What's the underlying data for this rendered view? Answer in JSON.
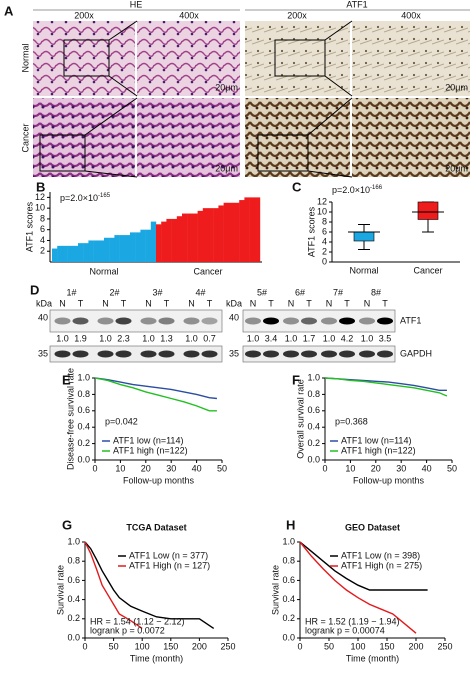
{
  "figure": {
    "panel_a": {
      "label": "A",
      "groups": [
        "HE",
        "ATF1"
      ],
      "magnifications": [
        "200x",
        "400x",
        "200x",
        "400x"
      ],
      "rows": [
        "Normal",
        "Cancer"
      ],
      "scale_bars": [
        "20μm",
        "20μm",
        "20μm",
        "20μm"
      ]
    },
    "panel_d": {
      "label": "D",
      "kda": [
        "kDa",
        "kDa"
      ],
      "left_markers": [
        "40",
        "35"
      ],
      "right_markers": [
        "40",
        "35"
      ],
      "proteins": [
        "ATF1",
        "GAPDH"
      ],
      "samples": [
        {
          "id": "1#",
          "lanes": [
            "N",
            "T"
          ],
          "ratios": [
            "1.0",
            "1.9"
          ]
        },
        {
          "id": "2#",
          "lanes": [
            "N",
            "T"
          ],
          "ratios": [
            "1.0",
            "2.3"
          ]
        },
        {
          "id": "3#",
          "lanes": [
            "N",
            "T"
          ],
          "ratios": [
            "1.0",
            "1.3"
          ]
        },
        {
          "id": "4#",
          "lanes": [
            "N",
            "T"
          ],
          "ratios": [
            "1.0",
            "0.7"
          ]
        },
        {
          "id": "5#",
          "lanes": [
            "N",
            "T"
          ],
          "ratios": [
            "1.0",
            "3.4"
          ]
        },
        {
          "id": "6#",
          "lanes": [
            "N",
            "T"
          ],
          "ratios": [
            "1.0",
            "1.7"
          ]
        },
        {
          "id": "7#",
          "lanes": [
            "N",
            "T"
          ],
          "ratios": [
            "1.0",
            "4.2"
          ]
        },
        {
          "id": "8#",
          "lanes": [
            "N",
            "T"
          ],
          "ratios": [
            "1.0",
            "3.5"
          ]
        }
      ]
    }
  },
  "chart_data": [
    {
      "type": "bar",
      "panel_label": "B",
      "ylabel": "ATF1 scores",
      "annotation": "p=2.0×10",
      "annotation_exponent": "-165",
      "ylim": [
        0,
        13
      ],
      "yticks": [
        2,
        4,
        6,
        8,
        10,
        12
      ],
      "series": [
        {
          "name": "Normal",
          "color": "#1aa7e2",
          "values": [
            2.5,
            3,
            3,
            3,
            3,
            3.5,
            3.5,
            4,
            4,
            4,
            4.5,
            4.5,
            5,
            5,
            5,
            5.5,
            5.5,
            6,
            6,
            7.5
          ]
        },
        {
          "name": "Cancer",
          "color": "#ee1c1c",
          "values": [
            7,
            7.5,
            8,
            8,
            8.5,
            9,
            9,
            9,
            9.5,
            10,
            10,
            10,
            10.5,
            11,
            11,
            11,
            11.5,
            12,
            12,
            12
          ]
        }
      ]
    },
    {
      "type": "box",
      "panel_label": "C",
      "ylabel": "ATF1 scores",
      "annotation": "p=2.0×10",
      "annotation_exponent": "-166",
      "ylim": [
        0,
        12
      ],
      "yticks": [
        0,
        2,
        4,
        6,
        8,
        10,
        12
      ],
      "categories": [
        "Normal",
        "Cancer"
      ],
      "colors": [
        "#1aa7e2",
        "#ee1c1c"
      ],
      "boxes": [
        {
          "min": 2.5,
          "q1": 4.2,
          "median": 6,
          "q3": 6,
          "max": 7.5
        },
        {
          "min": 6,
          "q1": 8.5,
          "median": 10,
          "q3": 12,
          "max": 12
        }
      ]
    },
    {
      "type": "line",
      "panel_label": "E",
      "xlabel": "Follow-up months",
      "ylabel": "Disease-free survival rate",
      "annotations": [
        "p=0.042"
      ],
      "xlim": [
        0,
        50
      ],
      "xticks": [
        0,
        10,
        20,
        30,
        40,
        50
      ],
      "ylim": [
        0,
        1
      ],
      "yticks": [
        {
          "value": 0,
          "label": "0.0"
        },
        0.2,
        0.4,
        0.6,
        0.8,
        {
          "value": 1,
          "label": "1.0"
        }
      ],
      "x": [
        0,
        5,
        10,
        15,
        20,
        25,
        30,
        35,
        40,
        45,
        48
      ],
      "series": [
        {
          "name": "ATF1 low (n=114)",
          "color": "#2b4ea2",
          "values": [
            1,
            0.98,
            0.95,
            0.92,
            0.9,
            0.88,
            0.86,
            0.83,
            0.8,
            0.76,
            0.75
          ]
        },
        {
          "name": "ATF1 high (n=122)",
          "color": "#22c022",
          "values": [
            1,
            0.97,
            0.92,
            0.88,
            0.83,
            0.79,
            0.75,
            0.71,
            0.66,
            0.6,
            0.6
          ]
        }
      ]
    },
    {
      "type": "line",
      "panel_label": "F",
      "xlabel": "Follow-up months",
      "ylabel": "Overall survival rate",
      "annotations": [
        "p=0.368"
      ],
      "xlim": [
        0,
        50
      ],
      "xticks": [
        0,
        10,
        20,
        30,
        40,
        50
      ],
      "ylim": [
        0,
        1
      ],
      "yticks": [
        {
          "value": 0,
          "label": "0.0"
        },
        0.2,
        0.4,
        0.6,
        0.8,
        {
          "value": 1,
          "label": "1.0"
        }
      ],
      "x": [
        0,
        5,
        10,
        15,
        20,
        25,
        30,
        35,
        40,
        45,
        48
      ],
      "series": [
        {
          "name": "ATF1 low (n=114)",
          "color": "#2b4ea2",
          "values": [
            1,
            0.99,
            0.98,
            0.97,
            0.96,
            0.95,
            0.93,
            0.91,
            0.88,
            0.85,
            0.85
          ]
        },
        {
          "name": "ATF1 high (n=122)",
          "color": "#22c022",
          "values": [
            1,
            0.99,
            0.97,
            0.96,
            0.94,
            0.92,
            0.9,
            0.88,
            0.85,
            0.82,
            0.78
          ]
        }
      ]
    },
    {
      "type": "line",
      "panel_label": "G",
      "title": "TCGA Dataset",
      "xlabel": "Time (month)",
      "ylabel": "Survival rate",
      "annotations": [
        "HR = 1.54 (1.12 − 2.12)",
        "logrank p = 0.0072"
      ],
      "xlim": [
        0,
        250
      ],
      "xticks": [
        0,
        50,
        100,
        150,
        200,
        250
      ],
      "ylim": [
        0,
        1
      ],
      "yticks": [
        {
          "value": 0,
          "label": "0.0"
        },
        0.2,
        0.4,
        0.6,
        0.8,
        {
          "value": 1,
          "label": "1.0"
        }
      ],
      "x": [
        0,
        10,
        20,
        30,
        40,
        50,
        60,
        80,
        100,
        125,
        150,
        175,
        200,
        225
      ],
      "series": [
        {
          "name": "ATF1 Low (n = 377)",
          "color": "#000000",
          "values": [
            1,
            0.93,
            0.82,
            0.7,
            0.6,
            0.5,
            0.42,
            0.33,
            0.28,
            0.22,
            0.2,
            0.2,
            0.2,
            0.1
          ]
        },
        {
          "name": "ATF1 High (n = 127)",
          "color": "#e31a1c",
          "values": [
            1,
            0.88,
            0.72,
            0.55,
            0.45,
            0.35,
            0.25,
            0.18,
            0.1,
            null,
            null,
            null,
            null,
            null
          ]
        }
      ]
    },
    {
      "type": "line",
      "panel_label": "H",
      "title": "GEO Dataset",
      "xlabel": "Time (month)",
      "ylabel": "Survival rate",
      "annotations": [
        "HR = 1.52 (1.19 − 1.94)",
        "logrank p = 0.00074"
      ],
      "xlim": [
        0,
        250
      ],
      "xticks": [
        0,
        50,
        100,
        150,
        200,
        250
      ],
      "ylim": [
        0,
        1
      ],
      "yticks": [
        {
          "value": 0,
          "label": "0.0"
        },
        0.2,
        0.4,
        0.6,
        0.8,
        {
          "value": 1,
          "label": "1.0"
        }
      ],
      "x": [
        0,
        20,
        40,
        60,
        80,
        100,
        120,
        140,
        160,
        180,
        200,
        220
      ],
      "series": [
        {
          "name": "ATF1 Low (n = 398)",
          "color": "#000000",
          "values": [
            1,
            0.9,
            0.8,
            0.7,
            0.62,
            0.55,
            0.5,
            0.5,
            0.5,
            0.5,
            0.5,
            0.5
          ]
        },
        {
          "name": "ATF1 High (n = 275)",
          "color": "#e31a1c",
          "values": [
            1,
            0.85,
            0.72,
            0.6,
            0.5,
            0.42,
            0.35,
            0.3,
            0.25,
            0.15,
            0.05,
            null
          ]
        }
      ]
    }
  ]
}
